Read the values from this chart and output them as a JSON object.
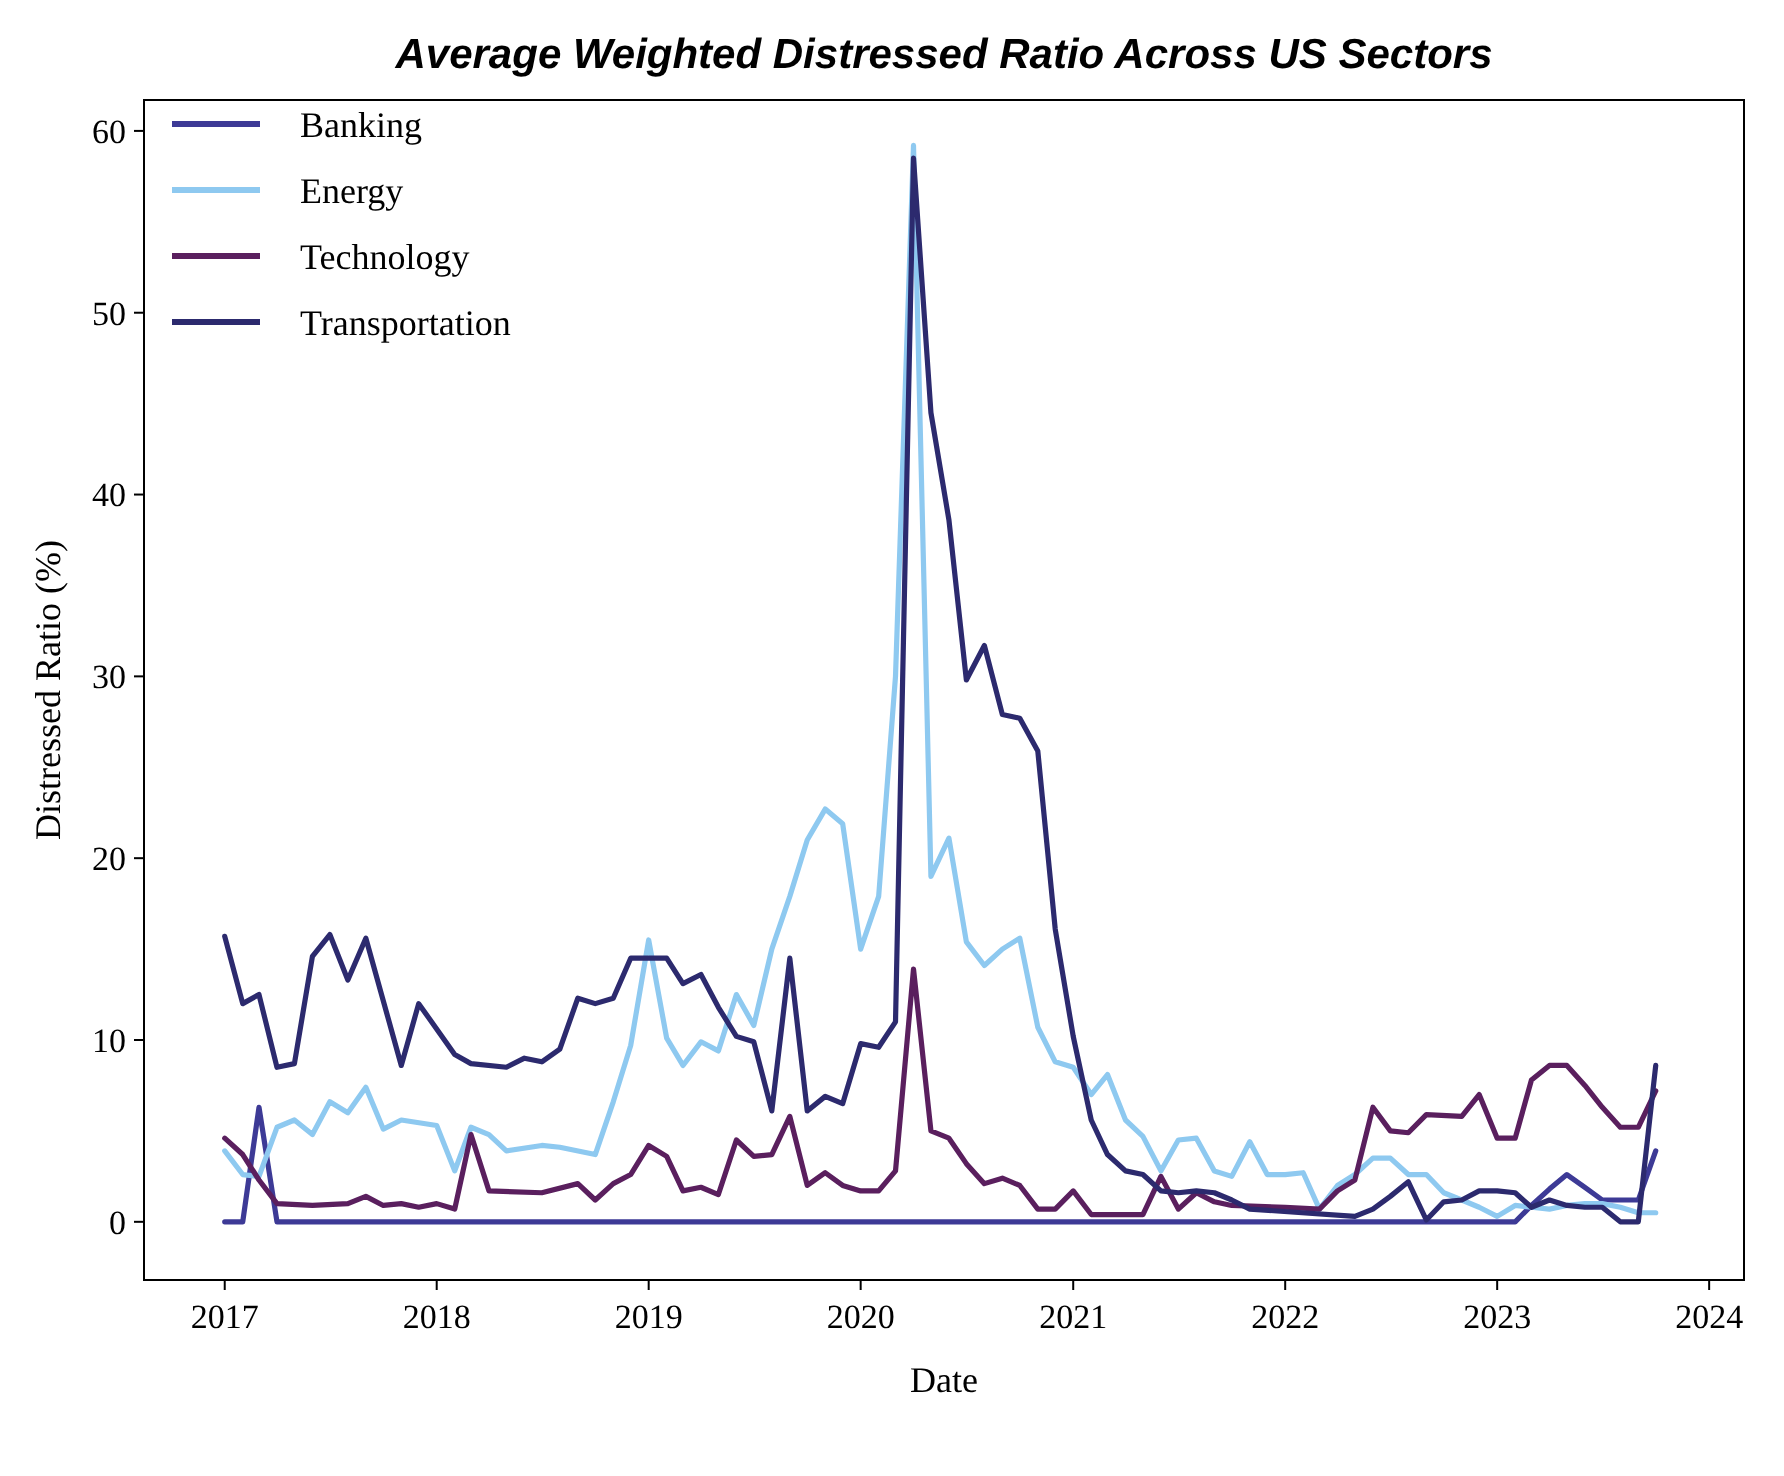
{
  "chart_data": {
    "type": "line",
    "title": "Average Weighted Distressed Ratio Across US Sectors",
    "xlabel": "Date",
    "ylabel": "Distressed Ratio (%)",
    "xlim": [
      "2016-08-15",
      "2024-03-01"
    ],
    "xticks": [
      "2017",
      "2018",
      "2019",
      "2020",
      "2021",
      "2022",
      "2023",
      "2024"
    ],
    "ylim": [
      -3.2,
      61.7
    ],
    "yticks": [
      0,
      10,
      20,
      30,
      40,
      50,
      60
    ],
    "grid": false,
    "legend": "top left",
    "line_style": "solid",
    "marker": "none",
    "series": [
      {
        "name": "Banking",
        "color": "#3d3a96",
        "x": [
          "2017-01",
          "2017-02",
          "2017-03",
          "2017-04",
          "2023-02",
          "2023-03",
          "2023-04",
          "2023-05",
          "2023-06",
          "2023-07",
          "2023-08",
          "2023-09",
          "2023-10"
        ],
        "values": [
          0,
          0,
          6.3,
          0,
          0,
          0.9,
          1.8,
          2.6,
          1.9,
          1.2,
          1.2,
          1.2,
          3.9
        ]
      },
      {
        "name": "Energy",
        "color": "#8ec9f0",
        "x": [
          "2017-01",
          "2017-02",
          "2017-03",
          "2017-04",
          "2017-05",
          "2017-06",
          "2017-07",
          "2017-08",
          "2017-09",
          "2017-10",
          "2017-11",
          "2018-01",
          "2018-02",
          "2018-03",
          "2018-04",
          "2018-05",
          "2018-07",
          "2018-08",
          "2018-10",
          "2018-11",
          "2018-12",
          "2019-01",
          "2019-02",
          "2019-03",
          "2019-04",
          "2019-05",
          "2019-06",
          "2019-07",
          "2019-08",
          "2019-09",
          "2019-10",
          "2019-11",
          "2019-12",
          "2020-01",
          "2020-02",
          "2020-03",
          "2020-04",
          "2020-05",
          "2020-06",
          "2020-07",
          "2020-08",
          "2020-09",
          "2020-10",
          "2020-11",
          "2020-12",
          "2021-01",
          "2021-02",
          "2021-03",
          "2021-04",
          "2021-05",
          "2021-06",
          "2021-07",
          "2021-08",
          "2021-09",
          "2021-10",
          "2021-11",
          "2021-12",
          "2022-01",
          "2022-02",
          "2022-03",
          "2022-04",
          "2022-05",
          "2022-06",
          "2022-07",
          "2022-08",
          "2022-09",
          "2022-10",
          "2022-11",
          "2022-12",
          "2023-01",
          "2023-02",
          "2023-03",
          "2023-04",
          "2023-05",
          "2023-06",
          "2023-07",
          "2023-08",
          "2023-09",
          "2023-10"
        ],
        "values": [
          3.9,
          2.6,
          2.5,
          5.2,
          5.6,
          4.8,
          6.6,
          6.0,
          7.4,
          5.1,
          5.6,
          5.3,
          2.8,
          5.2,
          4.8,
          3.9,
          4.2,
          4.1,
          3.7,
          6.6,
          9.7,
          15.5,
          10.1,
          8.6,
          9.9,
          9.4,
          12.5,
          10.8,
          15.0,
          17.9,
          21.0,
          22.7,
          21.9,
          15.0,
          17.9,
          30.0,
          59.2,
          19.0,
          21.1,
          15.4,
          14.1,
          15.0,
          15.6,
          10.7,
          8.8,
          8.5,
          7.0,
          8.1,
          5.6,
          4.7,
          2.8,
          4.5,
          4.6,
          2.8,
          2.5,
          4.4,
          2.6,
          2.6,
          2.7,
          0.7,
          2.0,
          2.6,
          3.5,
          3.5,
          2.6,
          2.6,
          1.6,
          1.2,
          0.8,
          0.3,
          0.9,
          0.8,
          0.7,
          0.9,
          1.0,
          1.0,
          0.8,
          0.5,
          0.5
        ]
      },
      {
        "name": "Technology",
        "color": "#5a1f5e",
        "x": [
          "2017-01",
          "2017-02",
          "2017-03",
          "2017-04",
          "2017-06",
          "2017-08",
          "2017-09",
          "2017-10",
          "2017-11",
          "2017-12",
          "2018-01",
          "2018-02",
          "2018-03",
          "2018-04",
          "2018-07",
          "2018-09",
          "2018-10",
          "2018-11",
          "2018-12",
          "2019-01",
          "2019-02",
          "2019-03",
          "2019-04",
          "2019-05",
          "2019-06",
          "2019-07",
          "2019-08",
          "2019-09",
          "2019-10",
          "2019-11",
          "2019-12",
          "2020-01",
          "2020-02",
          "2020-03",
          "2020-04",
          "2020-05",
          "2020-06",
          "2020-07",
          "2020-08",
          "2020-09",
          "2020-10",
          "2020-11",
          "2020-12",
          "2021-01",
          "2021-02",
          "2021-05",
          "2021-06",
          "2021-07",
          "2021-08",
          "2021-09",
          "2021-10",
          "2022-01",
          "2022-03",
          "2022-04",
          "2022-05",
          "2022-06",
          "2022-07",
          "2022-08",
          "2022-09",
          "2022-11",
          "2022-12",
          "2023-01",
          "2023-02",
          "2023-03",
          "2023-04",
          "2023-05",
          "2023-06",
          "2023-07",
          "2023-08",
          "2023-09",
          "2023-10"
        ],
        "values": [
          4.6,
          3.7,
          2.3,
          1.0,
          0.9,
          1.0,
          1.4,
          0.9,
          1.0,
          0.8,
          1.0,
          0.7,
          4.8,
          1.7,
          1.6,
          2.1,
          1.2,
          2.1,
          2.6,
          4.2,
          3.6,
          1.7,
          1.9,
          1.5,
          4.5,
          3.6,
          3.7,
          5.8,
          2.0,
          2.7,
          2.0,
          1.7,
          1.7,
          2.8,
          13.9,
          5.0,
          4.6,
          3.2,
          2.1,
          2.4,
          2.0,
          0.7,
          0.7,
          1.7,
          0.4,
          0.4,
          2.5,
          0.7,
          1.6,
          1.1,
          0.9,
          0.8,
          0.7,
          1.7,
          2.3,
          6.3,
          5.0,
          4.9,
          5.9,
          5.8,
          7.0,
          4.6,
          4.6,
          7.8,
          8.6,
          8.6,
          7.5,
          6.3,
          5.2,
          5.2,
          7.2
        ]
      },
      {
        "name": "Transportation",
        "color": "#2c2a6e",
        "x": [
          "2017-01",
          "2017-02",
          "2017-03",
          "2017-04",
          "2017-05",
          "2017-06",
          "2017-07",
          "2017-08",
          "2017-09",
          "2017-11",
          "2017-12",
          "2018-02",
          "2018-03",
          "2018-05",
          "2018-06",
          "2018-07",
          "2018-08",
          "2018-09",
          "2018-10",
          "2018-11",
          "2018-12",
          "2019-02",
          "2019-03",
          "2019-04",
          "2019-05",
          "2019-06",
          "2019-07",
          "2019-08",
          "2019-09",
          "2019-10",
          "2019-11",
          "2019-12",
          "2020-01",
          "2020-02",
          "2020-03",
          "2020-04",
          "2020-05",
          "2020-06",
          "2020-07",
          "2020-08",
          "2020-09",
          "2020-10",
          "2020-11",
          "2020-12",
          "2021-01",
          "2021-02",
          "2021-03",
          "2021-04",
          "2021-05",
          "2021-06",
          "2021-07",
          "2021-08",
          "2021-09",
          "2021-10",
          "2021-11",
          "2022-05",
          "2022-06",
          "2022-07",
          "2022-08",
          "2022-09",
          "2022-10",
          "2022-11",
          "2022-12",
          "2023-01",
          "2023-02",
          "2023-03",
          "2023-04",
          "2023-05",
          "2023-06",
          "2023-07",
          "2023-08",
          "2023-09",
          "2023-10"
        ],
        "values": [
          15.7,
          12.0,
          12.5,
          8.5,
          8.7,
          14.6,
          15.8,
          13.3,
          15.6,
          8.6,
          12.0,
          9.2,
          8.7,
          8.5,
          9.0,
          8.8,
          9.5,
          12.3,
          12.0,
          12.3,
          14.5,
          14.5,
          13.1,
          13.6,
          11.8,
          10.2,
          9.9,
          6.1,
          14.5,
          6.1,
          6.9,
          6.5,
          9.8,
          9.6,
          11.0,
          58.5,
          44.5,
          38.6,
          29.8,
          31.7,
          27.9,
          27.7,
          25.9,
          16.1,
          10.2,
          5.6,
          3.7,
          2.8,
          2.6,
          1.7,
          1.6,
          1.7,
          1.6,
          1.2,
          0.7,
          0.3,
          0.7,
          1.4,
          2.2,
          0.1,
          1.1,
          1.2,
          1.7,
          1.7,
          1.6,
          0.8,
          1.2,
          0.9,
          0.8,
          0.8,
          0,
          0,
          8.6
        ]
      }
    ]
  }
}
